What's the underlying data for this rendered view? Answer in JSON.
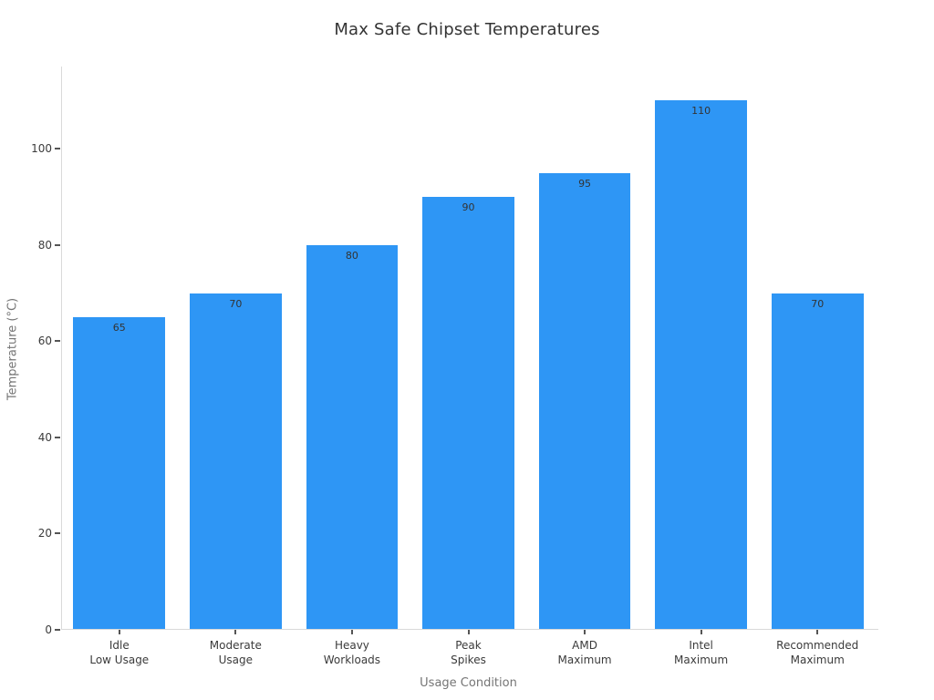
{
  "chart_data": {
    "type": "bar",
    "title": "Max Safe Chipset Temperatures",
    "xlabel": "Usage Condition",
    "ylabel": "Temperature (°C)",
    "categories": [
      [
        "Idle",
        "Low Usage"
      ],
      [
        "Moderate",
        "Usage"
      ],
      [
        "Heavy",
        "Workloads"
      ],
      [
        "Peak",
        "Spikes"
      ],
      [
        "AMD",
        "Maximum"
      ],
      [
        "Intel",
        "Maximum"
      ],
      [
        "Recommended",
        "Maximum"
      ]
    ],
    "values": [
      65,
      70,
      80,
      90,
      95,
      110,
      70
    ],
    "value_labels": [
      "65",
      "70",
      "80",
      "90",
      "95",
      "110",
      "70"
    ],
    "yticks": [
      0,
      20,
      40,
      60,
      80,
      100
    ],
    "ylim": [
      0,
      116.7
    ],
    "grid": false,
    "legend": null,
    "colors": {
      "bar": "#2E96F5",
      "title": "#333333",
      "tick_label": "#3b3b3b",
      "value_label": "#333333",
      "axis_title": "#757575",
      "axis_line": "#d9d9d9",
      "tick_mark": "#555555",
      "background": "#ffffff"
    }
  }
}
